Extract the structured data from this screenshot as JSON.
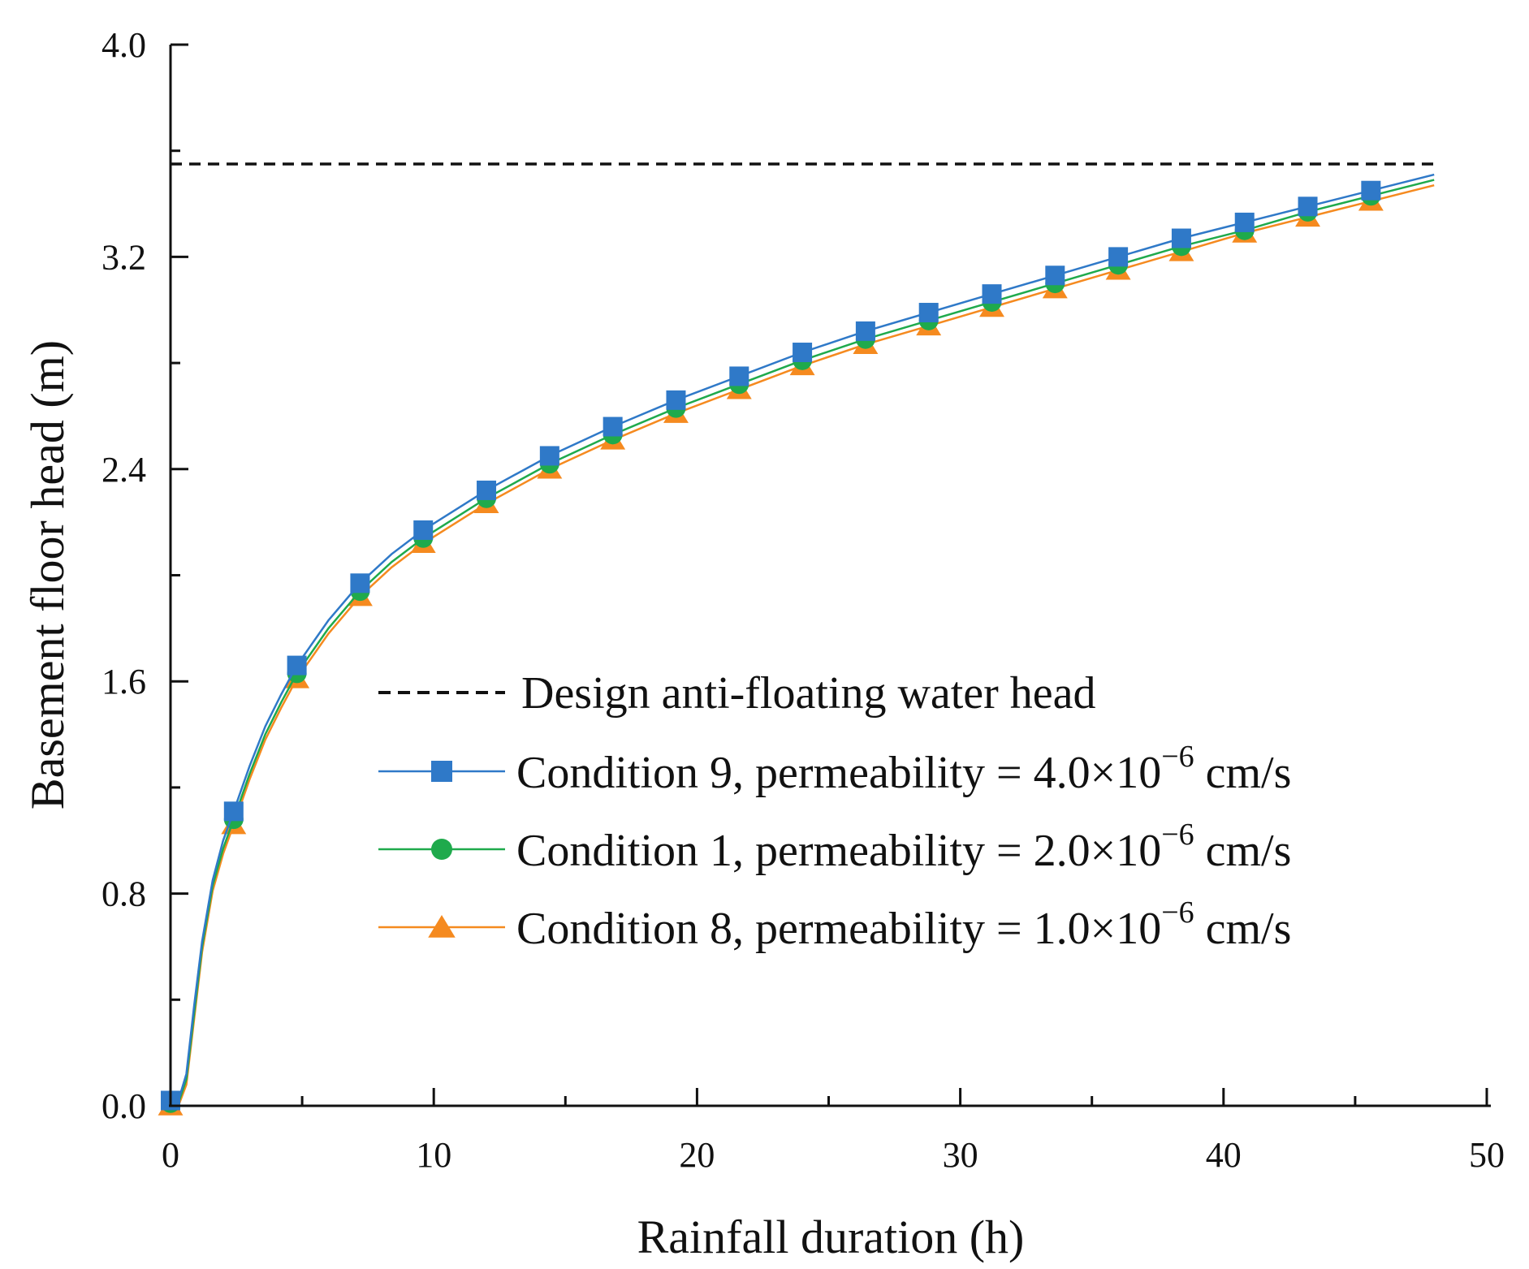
{
  "chart_data": {
    "type": "line",
    "xlabel": "Rainfall duration (h)",
    "ylabel": "Basement floor head (m)",
    "xlim": [
      0,
      50
    ],
    "ylim": [
      0,
      4.0
    ],
    "xticks": [
      0,
      10,
      20,
      30,
      40,
      50
    ],
    "yticks": [
      0.0,
      0.8,
      1.6,
      2.4,
      3.2,
      4.0
    ],
    "xtick_labels": [
      "0",
      "10",
      "20",
      "30",
      "40",
      "50"
    ],
    "ytick_labels": [
      "0.0",
      "0.8",
      "1.6",
      "2.4",
      "3.2",
      "4.0"
    ],
    "legend_position": "center-right",
    "reference_line": {
      "name": "Design anti-floating water head",
      "y": 3.55,
      "x_range": [
        0,
        48
      ],
      "style": "dashed",
      "color": "#111111"
    },
    "series": [
      {
        "name": "Condition 9, permeability = 4.0×10−6 cm/s",
        "label_main": "Condition 9, permeability = 4.0×10",
        "label_exp": "−6",
        "label_unit": " cm/s",
        "marker": "square",
        "color": "#2f79c8",
        "curve_x": [
          0,
          0.3,
          0.6,
          0.9,
          1.2,
          1.6,
          2.0,
          2.4,
          3.0,
          3.6,
          4.2,
          4.8,
          6.0,
          7.2,
          8.4,
          9.6,
          12.0,
          14.4,
          16.8,
          19.2,
          21.6,
          24.0,
          26.4,
          28.8,
          31.2,
          33.6,
          36.0,
          38.4,
          40.8,
          43.2,
          45.6,
          48.0
        ],
        "curve_y": [
          0.02,
          0.02,
          0.12,
          0.38,
          0.62,
          0.85,
          1.0,
          1.11,
          1.28,
          1.43,
          1.55,
          1.66,
          1.83,
          1.97,
          2.08,
          2.17,
          2.32,
          2.45,
          2.56,
          2.66,
          2.75,
          2.84,
          2.92,
          2.99,
          3.06,
          3.13,
          3.2,
          3.27,
          3.33,
          3.39,
          3.45,
          3.51
        ],
        "marker_x": [
          0,
          2.4,
          4.8,
          7.2,
          9.6,
          12.0,
          14.4,
          16.8,
          19.2,
          21.6,
          24.0,
          26.4,
          28.8,
          31.2,
          33.6,
          36.0,
          38.4,
          40.8,
          43.2,
          45.6
        ],
        "marker_y": [
          0.02,
          1.11,
          1.66,
          1.97,
          2.17,
          2.32,
          2.45,
          2.56,
          2.66,
          2.75,
          2.84,
          2.92,
          2.99,
          3.06,
          3.13,
          3.2,
          3.27,
          3.33,
          3.39,
          3.45
        ]
      },
      {
        "name": "Condition 1, permeability = 2.0×10−6 cm/s",
        "label_main": "Condition 1, permeability = 2.0×10",
        "label_exp": "−6",
        "label_unit": " cm/s",
        "marker": "circle",
        "color": "#1faa4c",
        "curve_x": [
          0,
          0.3,
          0.6,
          0.9,
          1.2,
          1.6,
          2.0,
          2.4,
          3.0,
          3.6,
          4.2,
          4.8,
          6.0,
          7.2,
          8.4,
          9.6,
          12.0,
          14.4,
          16.8,
          19.2,
          21.6,
          24.0,
          26.4,
          28.8,
          31.2,
          33.6,
          36.0,
          38.4,
          40.8,
          43.2,
          45.6,
          48.0
        ],
        "curve_y": [
          0.01,
          0.01,
          0.1,
          0.35,
          0.6,
          0.83,
          0.97,
          1.08,
          1.25,
          1.4,
          1.52,
          1.63,
          1.8,
          1.94,
          2.05,
          2.14,
          2.29,
          2.42,
          2.53,
          2.63,
          2.72,
          2.81,
          2.89,
          2.96,
          3.03,
          3.1,
          3.17,
          3.24,
          3.3,
          3.37,
          3.43,
          3.49
        ],
        "marker_x": [
          0,
          2.4,
          4.8,
          7.2,
          9.6,
          12.0,
          14.4,
          16.8,
          19.2,
          21.6,
          24.0,
          26.4,
          28.8,
          31.2,
          33.6,
          36.0,
          38.4,
          40.8,
          43.2,
          45.6
        ],
        "marker_y": [
          0.01,
          1.08,
          1.63,
          1.94,
          2.14,
          2.29,
          2.42,
          2.53,
          2.63,
          2.72,
          2.81,
          2.89,
          2.96,
          3.03,
          3.1,
          3.17,
          3.24,
          3.3,
          3.37,
          3.43
        ]
      },
      {
        "name": "Condition 8, permeability = 1.0×10−6 cm/s",
        "label_main": "Condition 8, permeability = 1.0×10",
        "label_exp": "−6",
        "label_unit": " cm/s",
        "marker": "triangle",
        "color": "#f58a1f",
        "curve_x": [
          0,
          0.3,
          0.6,
          0.9,
          1.2,
          1.6,
          2.0,
          2.4,
          3.0,
          3.6,
          4.2,
          4.8,
          6.0,
          7.2,
          8.4,
          9.6,
          12.0,
          14.4,
          16.8,
          19.2,
          21.6,
          24.0,
          26.4,
          28.8,
          31.2,
          33.6,
          36.0,
          38.4,
          40.8,
          43.2,
          45.6,
          48.0
        ],
        "curve_y": [
          0.0,
          0.0,
          0.08,
          0.33,
          0.58,
          0.81,
          0.95,
          1.06,
          1.23,
          1.38,
          1.5,
          1.61,
          1.78,
          1.92,
          2.03,
          2.12,
          2.27,
          2.4,
          2.51,
          2.61,
          2.7,
          2.79,
          2.87,
          2.94,
          3.01,
          3.08,
          3.15,
          3.22,
          3.29,
          3.35,
          3.41,
          3.47
        ],
        "marker_x": [
          0,
          2.4,
          4.8,
          7.2,
          9.6,
          12.0,
          14.4,
          16.8,
          19.2,
          21.6,
          24.0,
          26.4,
          28.8,
          31.2,
          33.6,
          36.0,
          38.4,
          40.8,
          43.2,
          45.6
        ],
        "marker_y": [
          0.0,
          1.06,
          1.61,
          1.92,
          2.12,
          2.27,
          2.4,
          2.51,
          2.61,
          2.7,
          2.79,
          2.87,
          2.94,
          3.01,
          3.08,
          3.15,
          3.22,
          3.29,
          3.35,
          3.41
        ]
      }
    ]
  }
}
